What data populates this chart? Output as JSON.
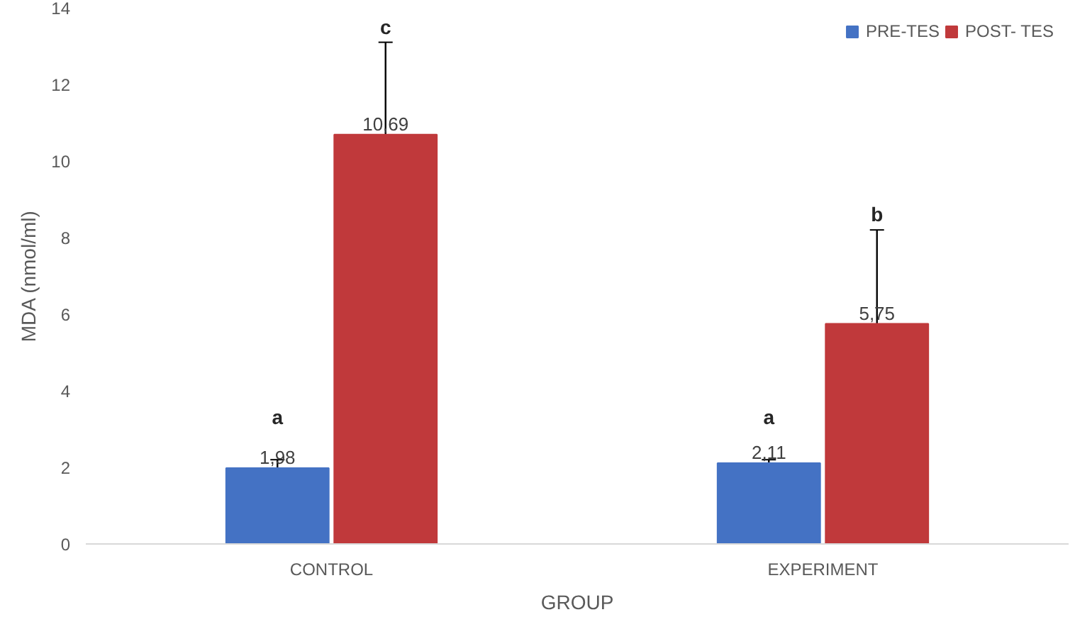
{
  "chart_data": {
    "type": "bar",
    "xlabel": "GROUP",
    "ylabel": "MDA (nmol/ml)",
    "categories": [
      "CONTROL",
      "EXPERIMENT"
    ],
    "series": [
      {
        "name": "PRE-TES",
        "color": "#4472c4",
        "values": [
          1.98,
          2.11
        ],
        "value_labels": [
          "1,98",
          "2,11"
        ],
        "errors": [
          [
            1.98,
            2.2
          ],
          [
            2.11,
            2.2
          ]
        ]
      },
      {
        "name": "POST- TES",
        "color": "#c0393b",
        "values": [
          10.69,
          5.75
        ],
        "value_labels": [
          "10,69",
          "5,75"
        ],
        "errors": [
          [
            10.69,
            13.1
          ],
          [
            5.75,
            8.2
          ]
        ]
      }
    ],
    "annotations": [
      "a",
      "c",
      "a",
      "b"
    ],
    "ylim": [
      0,
      14
    ],
    "yticks": [
      0,
      2,
      4,
      6,
      8,
      10,
      12,
      14
    ],
    "grid": false,
    "legend": "top right"
  }
}
